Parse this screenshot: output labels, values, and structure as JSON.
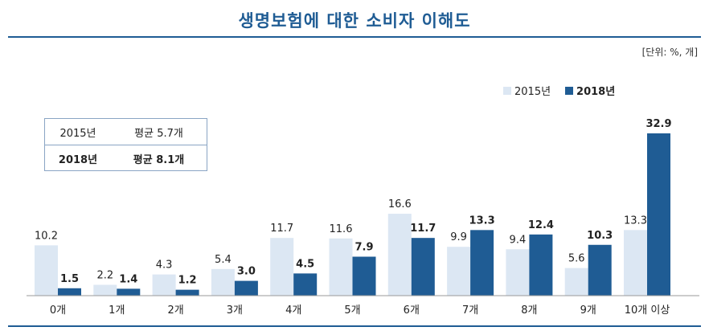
{
  "title": "생명보험에 대한 소비자 이해도",
  "unit_label": "[단위: %, 개]",
  "legend": [
    {
      "label": "2015년",
      "color": "#dce7f3"
    },
    {
      "label": "2018년",
      "color": "#1f5c94"
    }
  ],
  "average_table": [
    {
      "year": "2015년",
      "value": "평균 5.7개"
    },
    {
      "year": "2018년",
      "value": "평균 8.1개"
    }
  ],
  "chart_data": {
    "type": "bar",
    "categories": [
      "0개",
      "1개",
      "2개",
      "3개",
      "4개",
      "5개",
      "6개",
      "7개",
      "8개",
      "9개",
      "10개 이상"
    ],
    "series": [
      {
        "name": "2015년",
        "values": [
          10.2,
          2.2,
          4.3,
          5.4,
          11.7,
          11.6,
          16.6,
          9.9,
          9.4,
          5.6,
          13.3
        ],
        "color": "#dce7f3"
      },
      {
        "name": "2018년",
        "values": [
          1.5,
          1.4,
          1.2,
          3.0,
          4.5,
          7.9,
          11.7,
          13.3,
          12.4,
          10.3,
          32.9
        ],
        "color": "#1f5c94"
      }
    ],
    "ylim": [
      0,
      32.9
    ],
    "grid": false,
    "legend_position": "top-right"
  }
}
